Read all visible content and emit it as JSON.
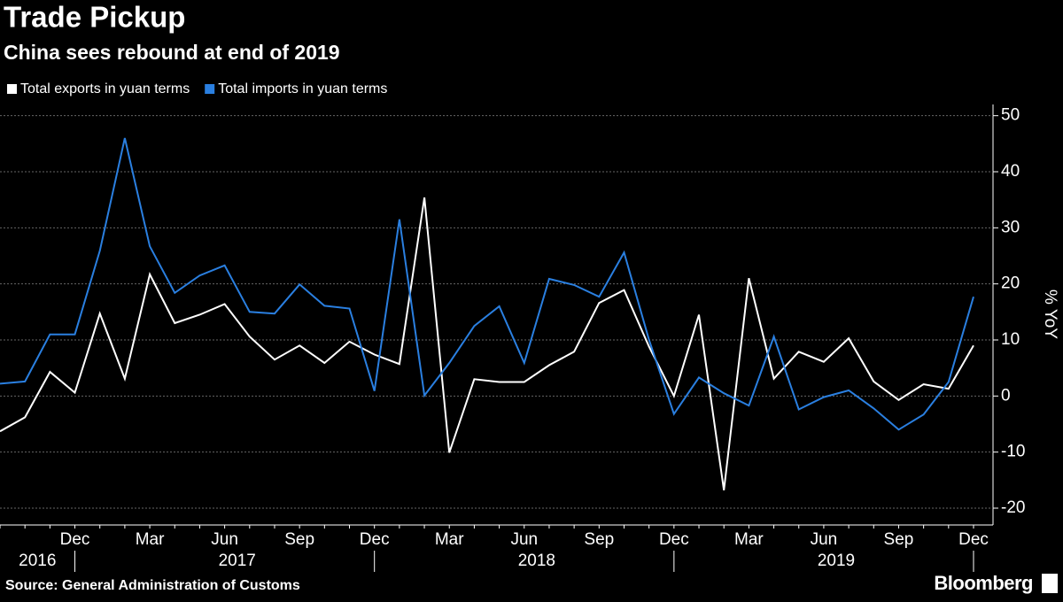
{
  "chart_data": {
    "type": "line",
    "title": "Trade Pickup",
    "subtitle": "China sees rebound at end of 2019",
    "y_axis_label": "% YoY",
    "source": "Source: General Administration of Customs",
    "brand": "Bloomberg",
    "categories": [
      null,
      null,
      null,
      "Dec",
      null,
      null,
      "Mar",
      null,
      null,
      "Jun",
      null,
      null,
      "Sep",
      null,
      null,
      "Dec",
      null,
      null,
      "Mar",
      null,
      null,
      "Jun",
      null,
      null,
      "Sep",
      null,
      null,
      "Dec",
      null,
      null,
      "Mar",
      null,
      null,
      "Jun",
      null,
      null,
      "Sep",
      null,
      null,
      "Dec"
    ],
    "x_groups": [
      "2016",
      "2017",
      "2018",
      "2019"
    ],
    "series": [
      {
        "name": "Total exports in yuan terms",
        "color": "#ffffff",
        "values": [
          -6.3,
          -3.8,
          4.3,
          0.6,
          14.7,
          3.1,
          21.7,
          13.0,
          14.5,
          16.4,
          10.6,
          6.5,
          9.0,
          5.9,
          9.7,
          7.4,
          5.7,
          35.4,
          -10.1,
          3.0,
          2.5,
          2.5,
          5.5,
          7.9,
          16.6,
          18.9,
          8.8,
          0.0,
          14.5,
          -16.8,
          21.0,
          3.1,
          7.9,
          6.1,
          10.3,
          2.6,
          -0.7,
          2.1,
          1.3,
          9.0
        ]
      },
      {
        "name": "Total imports in yuan terms",
        "color": "#2a7fe0",
        "values": [
          2.2,
          2.6,
          11.0,
          11.0,
          25.9,
          46.0,
          26.7,
          18.4,
          21.5,
          23.3,
          15.0,
          14.7,
          19.9,
          16.1,
          15.6,
          0.9,
          31.5,
          0.1,
          5.9,
          12.5,
          16.0,
          5.9,
          20.9,
          19.8,
          17.7,
          25.6,
          10.0,
          -3.2,
          3.3,
          0.5,
          -1.7,
          10.6,
          -2.4,
          -0.2,
          1.0,
          -2.2,
          -6.0,
          -3.3,
          2.5,
          17.7
        ]
      }
    ],
    "ylim": [
      -23,
      52
    ],
    "yticks": [
      -20,
      -10,
      0,
      10,
      20,
      30,
      40,
      50
    ],
    "grid": true
  }
}
